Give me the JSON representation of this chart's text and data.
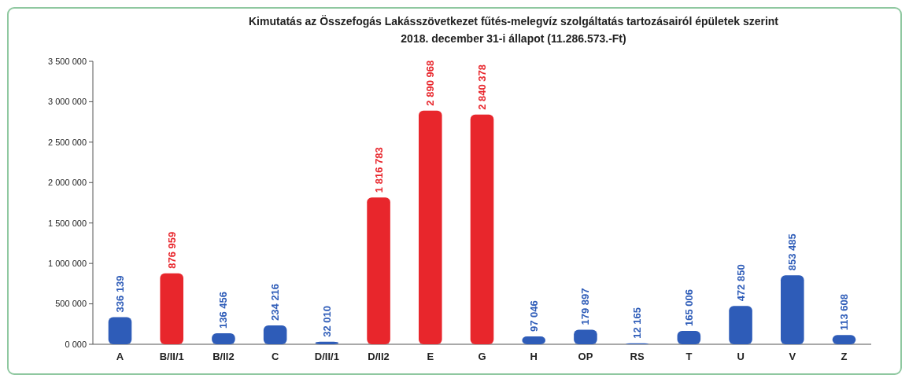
{
  "chart_data": {
    "type": "bar",
    "title": "Kimutatás az Összefogás Lakásszövetkezet fűtés-melegvíz szolgáltatás tartozásairól épületek szerint",
    "subtitle": "2018. december 31-i állapot (11.286.573.-Ft)",
    "categories": [
      "A",
      "B/II/1",
      "B/II2",
      "C",
      "D/II/1",
      "D/II2",
      "E",
      "G",
      "H",
      "OP",
      "RS",
      "T",
      "U",
      "V",
      "Z"
    ],
    "values": [
      336139,
      876959,
      136456,
      234216,
      32010,
      1816783,
      2890968,
      2840378,
      97046,
      179897,
      12165,
      165006,
      472850,
      853485,
      113608
    ],
    "colors": [
      "#2e5cb8",
      "#e8262c",
      "#2e5cb8",
      "#2e5cb8",
      "#2e5cb8",
      "#e8262c",
      "#e8262c",
      "#e8262c",
      "#2e5cb8",
      "#2e5cb8",
      "#2e5cb8",
      "#2e5cb8",
      "#2e5cb8",
      "#2e5cb8",
      "#2e5cb8"
    ],
    "value_labels": [
      "336 139",
      "876 959",
      "136 456",
      "234 216",
      "32 010",
      "1 816 783",
      "2 890 968",
      "2 840 378",
      "97 046",
      "179 897",
      "12 165",
      "165 006",
      "472 850",
      "853 485",
      "113 608"
    ],
    "ylim": [
      0,
      3500000
    ],
    "yticks": [
      {
        "value": 0,
        "label": "0 000"
      },
      {
        "value": 500000,
        "label": "500 000"
      },
      {
        "value": 1000000,
        "label": "1 000 000"
      },
      {
        "value": 1500000,
        "label": "1 500 000"
      },
      {
        "value": 2000000,
        "label": "2 000 000"
      },
      {
        "value": 2500000,
        "label": "2 500 000"
      },
      {
        "value": 3000000,
        "label": "3 000 000"
      },
      {
        "value": 3500000,
        "label": "3 500 000"
      }
    ],
    "grid": false
  }
}
